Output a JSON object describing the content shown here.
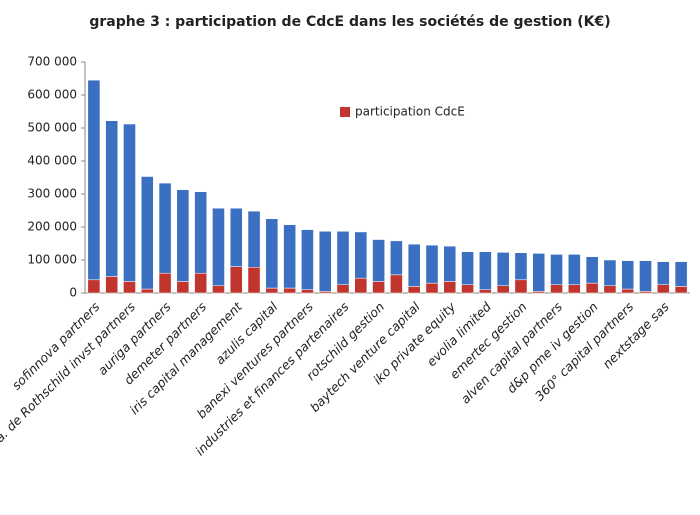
{
  "chart_data": {
    "type": "stacked_bar",
    "title": "graphe 3 : participation de CdcE dans les sociétés de gestion (K€)",
    "categories": [
      "sofinnova partners",
      null,
      "a. de Rothschild invst partners",
      null,
      "auriga partners",
      null,
      "demeter partners",
      null,
      "iris capital management",
      null,
      "azulis capital",
      null,
      "banexi ventures partners",
      null,
      "industries et finances partenaires",
      null,
      "rotschild gestion",
      null,
      "baytech venture capital",
      null,
      "iko private equity",
      null,
      "evolia limited",
      null,
      "emertec gestion",
      null,
      "alven capital partners",
      null,
      "d&p pme iv gestion",
      null,
      "360° capital partners",
      null,
      "nextstage sas",
      null
    ],
    "series": [
      {
        "name": "participation CdcE",
        "color": "#c0352e",
        "values": [
          40000,
          50000,
          35000,
          12000,
          60000,
          35000,
          60000,
          22000,
          80000,
          78000,
          15000,
          15000,
          10000,
          5000,
          25000,
          45000,
          35000,
          55000,
          20000,
          30000,
          35000,
          25000,
          10000,
          22000,
          40000,
          5000,
          25000,
          25000,
          30000,
          22000,
          12000,
          5000,
          25000,
          20000
        ]
      },
      {
        "color": "#3b6fc2",
        "values": [
          605000,
          472000,
          477000,
          341000,
          273000,
          278000,
          247000,
          235000,
          177000,
          170000,
          210000,
          192000,
          182000,
          182000,
          162000,
          140000,
          127000,
          103000,
          128000,
          115000,
          107000,
          100000,
          115000,
          101000,
          82000,
          115000,
          92000,
          92000,
          80000,
          78000,
          86000,
          93000,
          70000,
          75000
        ]
      }
    ],
    "ylim": [
      0,
      700000
    ],
    "yticks": [
      0,
      {
        "value": 100000,
        "label": "100 000"
      },
      {
        "value": 200000,
        "label": "200 000"
      },
      {
        "value": 300000,
        "label": "300 000"
      },
      {
        "value": 400000,
        "label": "400 000"
      },
      {
        "value": 500000,
        "label": "500 000"
      },
      {
        "value": 600000,
        "label": "600 000"
      },
      {
        "value": 700000,
        "label": "700 000"
      }
    ],
    "grid": false
  }
}
